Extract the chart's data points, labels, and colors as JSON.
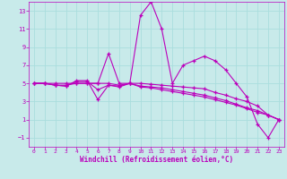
{
  "background_color": "#c8eaea",
  "grid_color": "#aadddd",
  "line_color": "#bb00bb",
  "marker": "+",
  "xlabel": "Windchill (Refroidissement éolien,°C)",
  "xlabel_color": "#bb00bb",
  "tick_color": "#bb00bb",
  "ylim": [
    -2,
    14
  ],
  "xlim": [
    -0.5,
    23.5
  ],
  "yticks": [
    -1,
    1,
    3,
    5,
    7,
    9,
    11,
    13
  ],
  "xticks": [
    0,
    1,
    2,
    3,
    4,
    5,
    6,
    7,
    8,
    9,
    10,
    11,
    12,
    13,
    14,
    15,
    16,
    17,
    18,
    19,
    20,
    21,
    22,
    23
  ],
  "series_main": [
    5,
    5,
    5,
    5,
    5,
    5,
    5,
    8.3,
    5,
    5,
    12.5,
    14.0,
    11.0,
    5,
    7.0,
    7.5,
    8.0,
    7.5,
    6.5,
    5,
    3.5,
    0.5,
    -1.0,
    1.0
  ],
  "series_a": [
    5,
    5,
    4.8,
    4.7,
    5.2,
    5.2,
    4.3,
    4.8,
    4.7,
    5,
    4.7,
    4.6,
    4.5,
    4.3,
    4.1,
    3.9,
    3.7,
    3.4,
    3.1,
    2.7,
    2.3,
    2.0,
    1.5,
    1.0
  ],
  "series_b": [
    5,
    5,
    4.8,
    4.7,
    5.3,
    5.3,
    3.2,
    4.8,
    4.6,
    5,
    4.6,
    4.5,
    4.3,
    4.1,
    3.9,
    3.7,
    3.5,
    3.2,
    2.9,
    2.6,
    2.2,
    1.8,
    1.5,
    1.0
  ],
  "series_c": [
    5,
    5,
    4.8,
    4.8,
    5.0,
    5.0,
    5.0,
    5.0,
    4.8,
    5,
    5.0,
    4.9,
    4.8,
    4.7,
    4.6,
    4.5,
    4.4,
    4.0,
    3.7,
    3.3,
    3.0,
    2.5,
    1.5,
    1.0
  ]
}
